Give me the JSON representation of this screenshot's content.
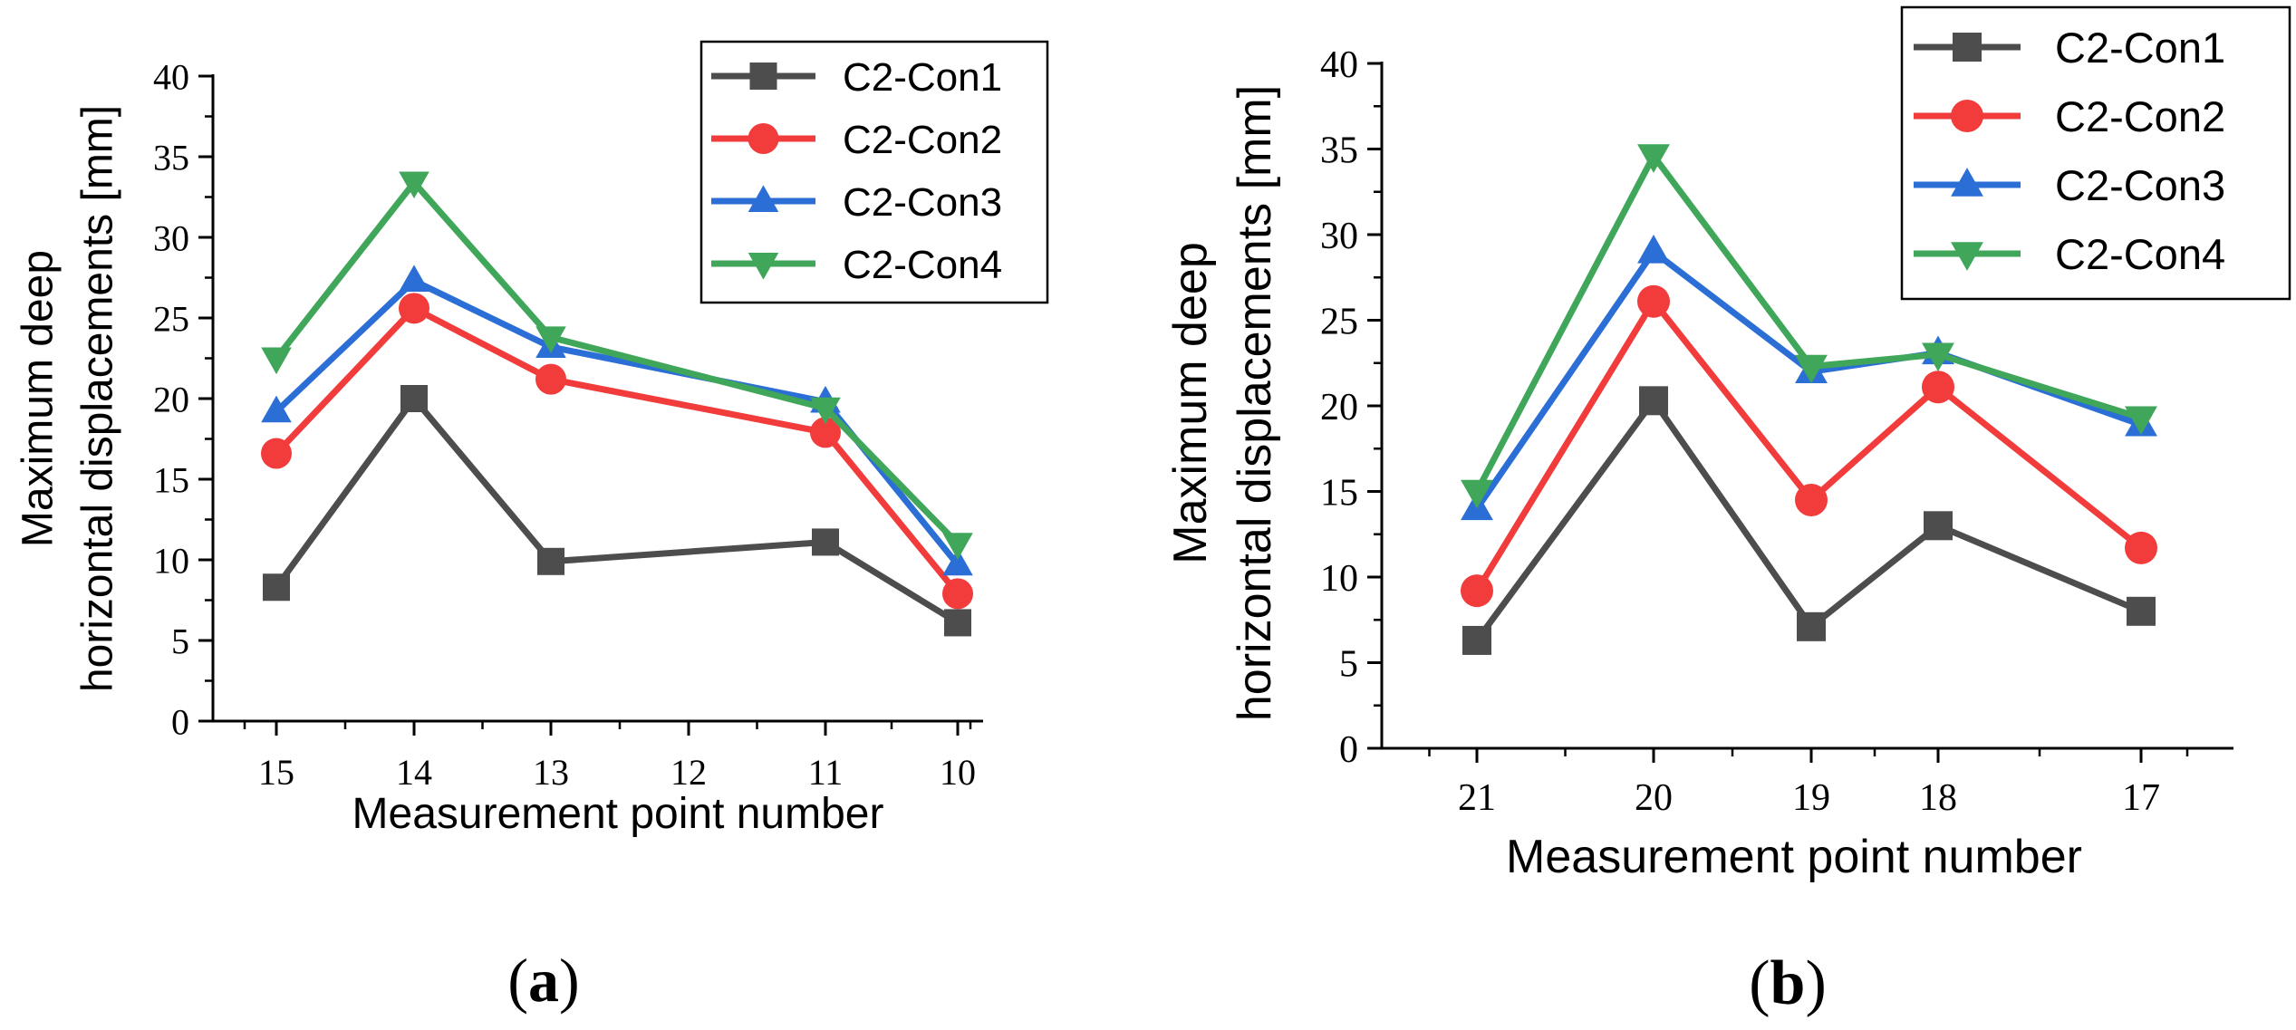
{
  "chart_data": [
    {
      "type": "line",
      "panel_label": "(a)",
      "panel_letter": "a",
      "categories": [
        "15",
        "14",
        "13",
        "12",
        "11",
        "10"
      ],
      "ylabel_line1": "Maximum deep",
      "ylabel_line2": "horizontal displacements [mm]",
      "xlabel": "Measurement point number",
      "ylim": [
        0,
        40
      ],
      "yticks": [
        "0",
        "5",
        "10",
        "15",
        "20",
        "25",
        "30",
        "35",
        "40"
      ],
      "legend_position": "top-right",
      "series": [
        {
          "name": "C2-Con1",
          "marker": "square",
          "color": "#4d4d4d",
          "values": [
            8.3,
            20.0,
            9.9,
            null,
            11.1,
            6.1
          ]
        },
        {
          "name": "C2-Con2",
          "marker": "circle",
          "color": "#f23b3b",
          "values": [
            16.6,
            25.6,
            21.2,
            null,
            17.9,
            7.9
          ]
        },
        {
          "name": "C2-Con3",
          "marker": "triangle-up",
          "color": "#2b6fd6",
          "values": [
            19.2,
            27.3,
            23.2,
            null,
            19.8,
            9.7
          ]
        },
        {
          "name": "C2-Con4",
          "marker": "triangle-down",
          "color": "#3fa65a",
          "values": [
            22.5,
            33.4,
            23.8,
            null,
            19.4,
            11.0
          ]
        }
      ]
    },
    {
      "type": "line",
      "panel_label": "(b)",
      "panel_letter": "b",
      "categories": [
        "21",
        "20",
        "19",
        "18",
        "17"
      ],
      "ylabel_line1": "Maximum deep",
      "ylabel_line2": "horizontal displacements [mm]",
      "xlabel": "Measurement point number",
      "ylim": [
        0,
        40
      ],
      "yticks": [
        "0",
        "5",
        "10",
        "15",
        "20",
        "25",
        "30",
        "35",
        "40"
      ],
      "legend_position": "top-right",
      "series": [
        {
          "name": "C2-Con1",
          "marker": "square",
          "color": "#4d4d4d",
          "values": [
            6.3,
            20.3,
            7.1,
            13.0,
            8.0
          ]
        },
        {
          "name": "C2-Con2",
          "marker": "circle",
          "color": "#f23b3b",
          "values": [
            9.2,
            26.1,
            14.5,
            21.1,
            11.7
          ]
        },
        {
          "name": "C2-Con3",
          "marker": "triangle-up",
          "color": "#2b6fd6",
          "values": [
            14.0,
            29.0,
            22.0,
            23.1,
            18.9
          ]
        },
        {
          "name": "C2-Con4",
          "marker": "triangle-down",
          "color": "#3fa65a",
          "values": [
            15.0,
            34.6,
            22.3,
            23.0,
            19.3
          ]
        }
      ]
    }
  ]
}
